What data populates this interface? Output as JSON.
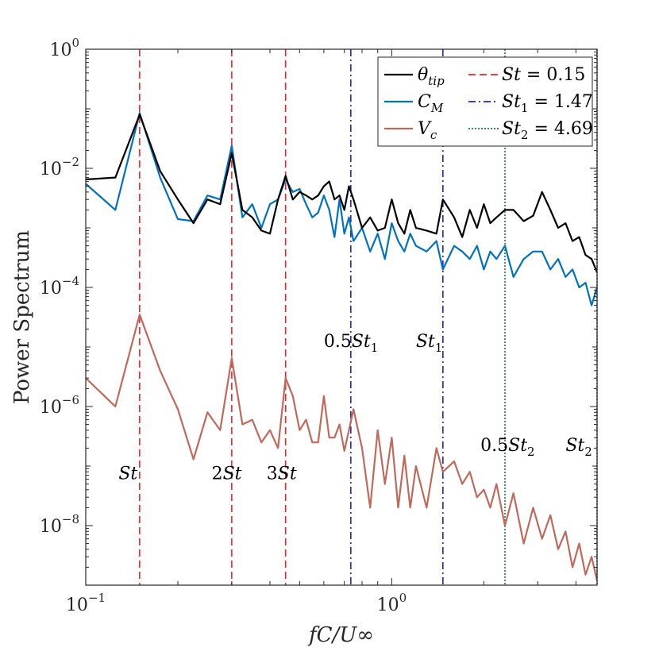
{
  "chart_data": {
    "type": "line",
    "title": "",
    "xlabel": "fC/U∞",
    "ylabel": "Power Spectrum",
    "xscale": "log",
    "yscale": "log",
    "xlim": [
      0.1,
      4.69
    ],
    "ylim": [
      1e-09,
      1
    ],
    "grid": false,
    "legend_position": "top-right",
    "x_ticks": [
      {
        "value": 0.1,
        "base": "10",
        "exp": "−1"
      },
      {
        "value": 1,
        "base": "10",
        "exp": "0"
      }
    ],
    "y_ticks": [
      {
        "value": 1e-08,
        "base": "10",
        "exp": "−8"
      },
      {
        "value": 1e-06,
        "base": "10",
        "exp": "−6"
      },
      {
        "value": 0.0001,
        "base": "10",
        "exp": "−4"
      },
      {
        "value": 0.01,
        "base": "10",
        "exp": "−2"
      },
      {
        "value": 1,
        "base": "10",
        "exp": "0"
      }
    ],
    "series": [
      {
        "name": "θ_tip",
        "legend_main": "θ",
        "legend_sub": "tip",
        "color": "#000000",
        "x": [
          0.1,
          0.125,
          0.15,
          0.175,
          0.2,
          0.225,
          0.25,
          0.275,
          0.3,
          0.325,
          0.35,
          0.375,
          0.4,
          0.425,
          0.45,
          0.475,
          0.5,
          0.525,
          0.55,
          0.575,
          0.6,
          0.625,
          0.65,
          0.675,
          0.7,
          0.725,
          0.75,
          0.8,
          0.85,
          0.9,
          0.95,
          1.0,
          1.05,
          1.1,
          1.15,
          1.2,
          1.3,
          1.4,
          1.47,
          1.6,
          1.7,
          1.8,
          1.9,
          2.0,
          2.1,
          2.2,
          2.345,
          2.5,
          2.7,
          2.9,
          3.1,
          3.3,
          3.5,
          3.7,
          3.9,
          4.1,
          4.3,
          4.5,
          4.69
        ],
        "values": [
          0.0065,
          0.007,
          0.08,
          0.009,
          0.003,
          0.0012,
          0.003,
          0.0025,
          0.018,
          0.002,
          0.0015,
          0.0009,
          0.0008,
          0.003,
          0.0075,
          0.003,
          0.004,
          0.0035,
          0.003,
          0.0035,
          0.005,
          0.006,
          0.003,
          0.0035,
          0.002,
          0.005,
          0.003,
          0.001,
          0.0015,
          0.0009,
          0.001,
          0.003,
          0.0012,
          0.0008,
          0.002,
          0.001,
          0.0009,
          0.0008,
          0.003,
          0.0015,
          0.0007,
          0.002,
          0.001,
          0.0025,
          0.0012,
          0.0015,
          0.002,
          0.002,
          0.0013,
          0.0016,
          0.004,
          0.002,
          0.001,
          0.0012,
          0.0006,
          0.0007,
          0.00035,
          0.0003,
          0.00018
        ]
      },
      {
        "name": "C_M",
        "legend_main": "C",
        "legend_sub": "M",
        "color": "#0072BD",
        "x": [
          0.1,
          0.125,
          0.15,
          0.175,
          0.2,
          0.225,
          0.25,
          0.275,
          0.3,
          0.325,
          0.35,
          0.375,
          0.4,
          0.425,
          0.45,
          0.475,
          0.5,
          0.525,
          0.55,
          0.575,
          0.6,
          0.625,
          0.65,
          0.675,
          0.7,
          0.725,
          0.75,
          0.8,
          0.85,
          0.9,
          0.95,
          1.0,
          1.05,
          1.1,
          1.15,
          1.2,
          1.3,
          1.4,
          1.47,
          1.6,
          1.7,
          1.8,
          1.9,
          2.0,
          2.1,
          2.2,
          2.345,
          2.5,
          2.7,
          2.9,
          3.1,
          3.3,
          3.5,
          3.7,
          3.9,
          4.1,
          4.3,
          4.5,
          4.69
        ],
        "values": [
          0.0055,
          0.002,
          0.085,
          0.007,
          0.0014,
          0.0013,
          0.0035,
          0.003,
          0.024,
          0.0015,
          0.0025,
          0.001,
          0.0025,
          0.003,
          0.0065,
          0.004,
          0.0045,
          0.0025,
          0.0015,
          0.0018,
          0.0035,
          0.002,
          0.0007,
          0.003,
          0.0008,
          0.0015,
          0.0006,
          0.001,
          0.0004,
          0.0008,
          0.0003,
          0.0012,
          0.0006,
          0.0004,
          0.0008,
          0.0005,
          0.0004,
          0.0006,
          0.0002,
          0.0005,
          0.0004,
          0.0003,
          0.0005,
          0.0002,
          0.0004,
          0.0003,
          0.0005,
          0.00015,
          0.0003,
          0.0004,
          0.0004,
          0.0002,
          0.0003,
          0.00015,
          0.0002,
          0.0001,
          0.00012,
          5e-05,
          0.0001
        ]
      },
      {
        "name": "V_c",
        "legend_main": "V",
        "legend_sub": "c",
        "color": "#C0695A",
        "x": [
          0.1,
          0.125,
          0.15,
          0.175,
          0.2,
          0.225,
          0.25,
          0.275,
          0.3,
          0.325,
          0.35,
          0.375,
          0.4,
          0.425,
          0.45,
          0.475,
          0.5,
          0.525,
          0.55,
          0.575,
          0.6,
          0.625,
          0.65,
          0.675,
          0.7,
          0.725,
          0.75,
          0.8,
          0.85,
          0.9,
          0.95,
          1.0,
          1.05,
          1.1,
          1.15,
          1.2,
          1.3,
          1.4,
          1.47,
          1.6,
          1.7,
          1.8,
          1.9,
          2.0,
          2.1,
          2.2,
          2.345,
          2.5,
          2.7,
          2.9,
          3.1,
          3.3,
          3.5,
          3.7,
          3.9,
          4.1,
          4.3,
          4.5,
          4.69
        ],
        "values": [
          3e-06,
          1e-06,
          3.5e-05,
          4e-06,
          9e-07,
          1.3e-07,
          8e-07,
          4e-07,
          6.5e-06,
          5e-07,
          6e-07,
          2.5e-07,
          4e-07,
          2e-07,
          3e-06,
          1.5e-06,
          4e-07,
          6e-07,
          2.5e-07,
          2.5e-07,
          1.5e-06,
          3e-07,
          3e-07,
          5e-07,
          1.8e-07,
          4e-07,
          9e-07,
          2e-07,
          2e-08,
          4e-07,
          5e-08,
          3e-07,
          2e-08,
          1.5e-07,
          2e-08,
          1e-07,
          2e-08,
          2e-07,
          8e-08,
          1.2e-07,
          5e-08,
          8e-08,
          3e-08,
          4e-08,
          2e-08,
          5e-08,
          1e-08,
          3.5e-08,
          5e-09,
          2e-08,
          6e-09,
          1.5e-08,
          4e-09,
          8e-09,
          2e-09,
          5e-09,
          1.5e-09,
          3e-09,
          1.2e-09
        ]
      }
    ],
    "vertical_lines": [
      {
        "name": "St = 0.15",
        "legend_main": "St",
        "legend_sub": "",
        "legend_value": "= 0.15",
        "x": 0.15,
        "color": "#E8262A",
        "dash": "dashed"
      },
      {
        "name": "2St",
        "x": 0.3,
        "color": "#E8262A",
        "dash": "dashed"
      },
      {
        "name": "3St",
        "x": 0.45,
        "color": "#E8262A",
        "dash": "dashed"
      },
      {
        "name": "St_1 = 1.47",
        "legend_main": "St",
        "legend_sub": "1",
        "legend_value": "= 1.47",
        "x": 1.47,
        "color": "#1F1FD8",
        "dash": "dashdot"
      },
      {
        "name": "0.5St_1",
        "x": 0.735,
        "color": "#1F1FD8",
        "dash": "dashdot"
      },
      {
        "name": "St_2 = 4.69",
        "legend_main": "St",
        "legend_sub": "2",
        "legend_value": "= 4.69",
        "x": 4.69,
        "color": "#177A4A",
        "dash": "dotted"
      },
      {
        "name": "0.5St_2",
        "x": 2.345,
        "color": "#177A4A",
        "dash": "dotted"
      }
    ],
    "annotations": [
      {
        "prefix": "",
        "main": "St",
        "sub": "",
        "x": 0.128,
        "y": 6e-08
      },
      {
        "prefix": "2",
        "main": "St",
        "sub": "",
        "x": 0.258,
        "y": 6e-08
      },
      {
        "prefix": "3",
        "main": "St",
        "sub": "",
        "x": 0.39,
        "y": 6e-08
      },
      {
        "prefix": "0.5",
        "main": "St",
        "sub": "1",
        "x": 0.6,
        "y": 1e-05
      },
      {
        "prefix": "",
        "main": "St",
        "sub": "1",
        "x": 1.2,
        "y": 1e-05
      },
      {
        "prefix": "0.5",
        "main": "St",
        "sub": "2",
        "x": 1.95,
        "y": 1.8e-07
      },
      {
        "prefix": "",
        "main": "St",
        "sub": "2",
        "x": 3.7,
        "y": 1.8e-07
      }
    ]
  }
}
